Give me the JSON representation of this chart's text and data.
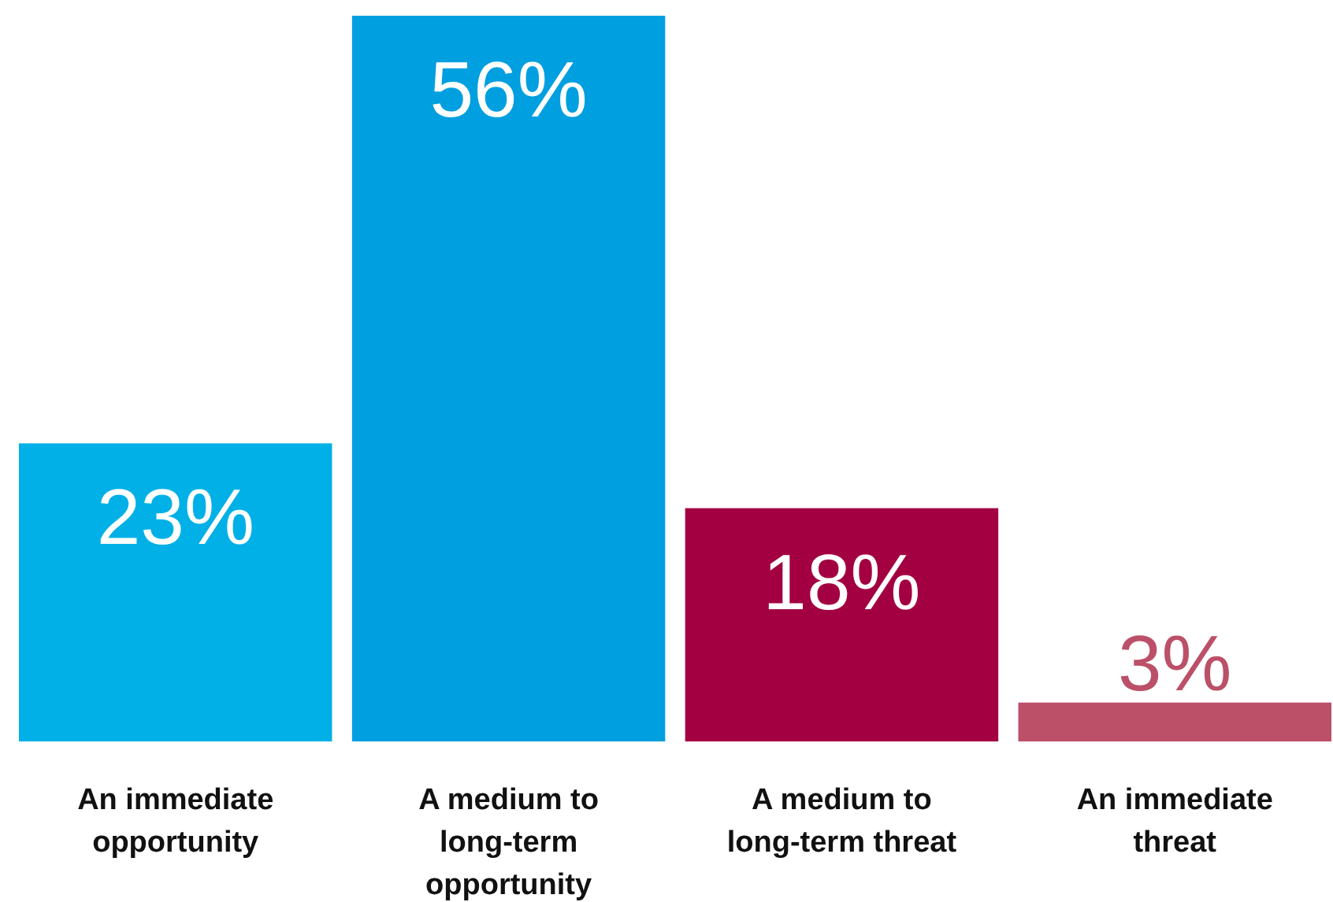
{
  "chart_data": {
    "type": "bar",
    "categories": [
      "An immediate opportunity",
      "A medium to long-term opportunity",
      "A medium to long-term threat",
      "An immediate threat"
    ],
    "values": [
      23,
      56,
      18,
      3
    ],
    "colors": [
      "#00b0e6",
      "#009fe0",
      "#a30041",
      "#bb5068"
    ],
    "value_labels": [
      "23%",
      "56%",
      "18%",
      "3%"
    ]
  }
}
